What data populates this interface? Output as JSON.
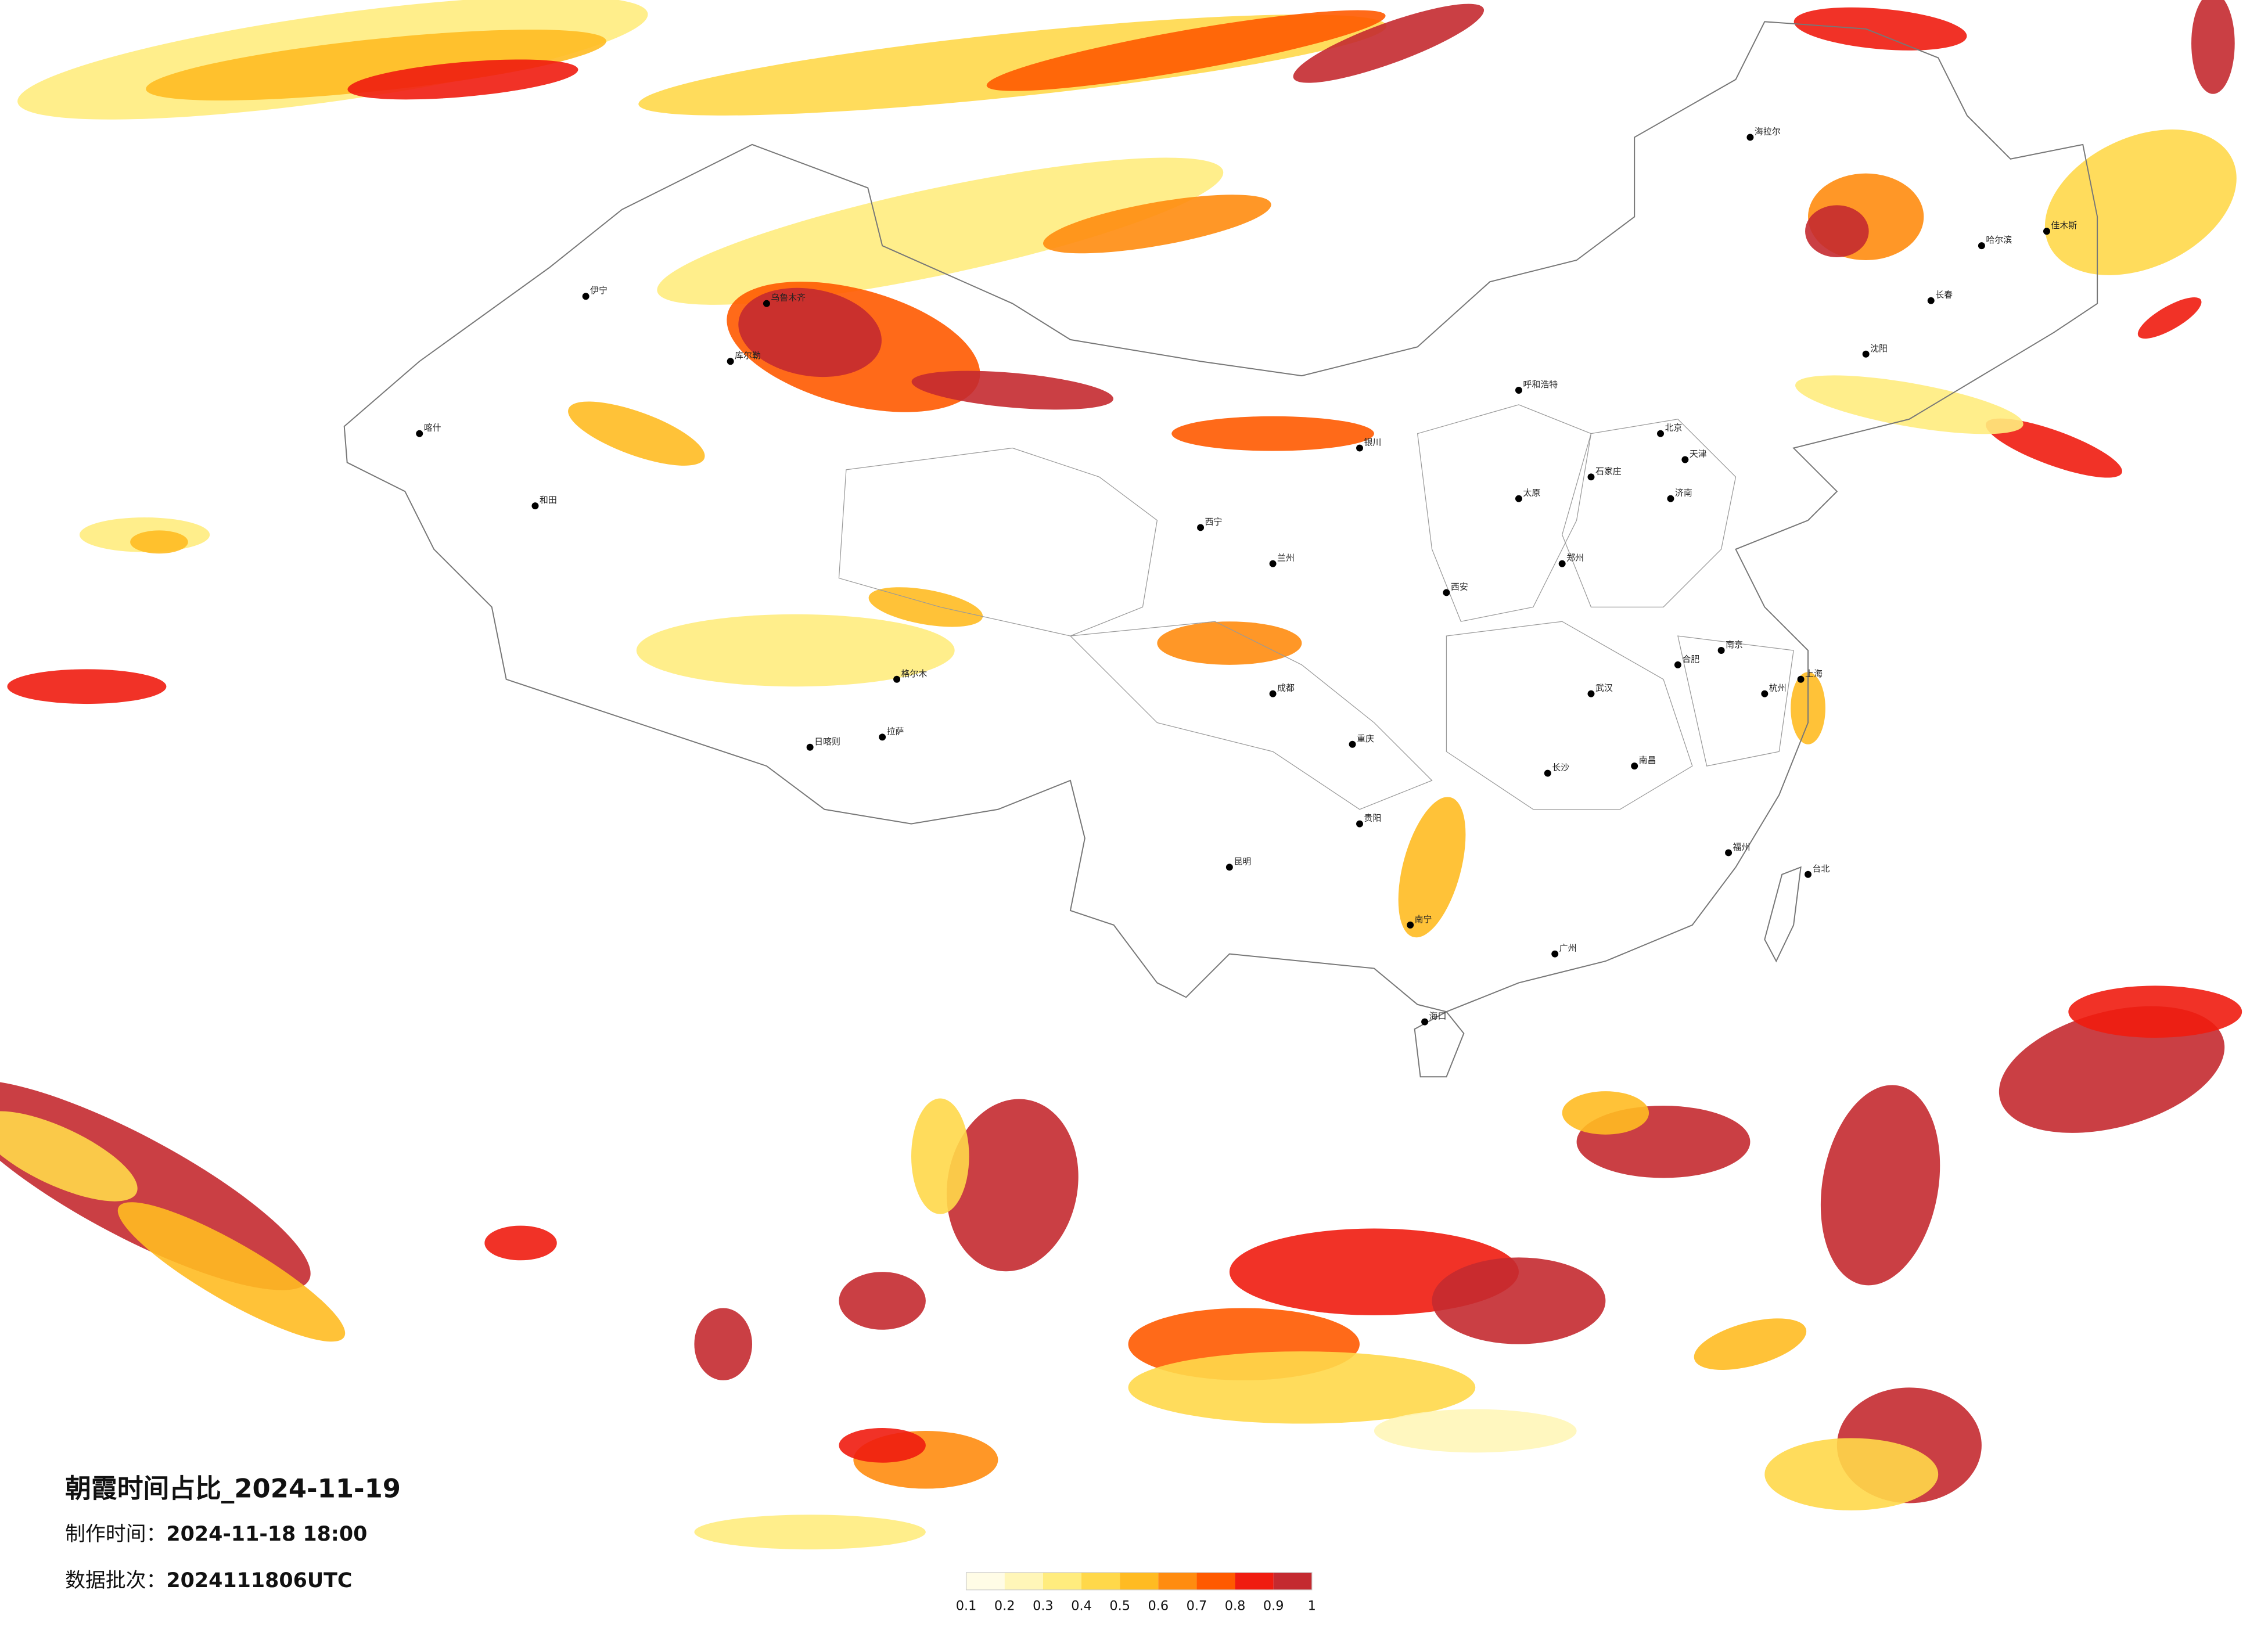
{
  "title": "朝霞时间占比_2024-11-19",
  "info": [
    {
      "label": "制作时间：",
      "value": "2024-11-18 18:00"
    },
    {
      "label": "数据批次：",
      "value": "2024111806UTC"
    }
  ],
  "legend": {
    "ticks": [
      0.1,
      0.2,
      0.3,
      0.4,
      0.5,
      0.6,
      0.7,
      0.8,
      0.9,
      1
    ],
    "colors": [
      "#fffce6",
      "#fff6b8",
      "#ffec7e",
      "#ffd84a",
      "#ffbb22",
      "#ff8c10",
      "#ff5a00",
      "#f01c10",
      "#c42a30"
    ]
  },
  "cities": [
    "北京",
    "天津",
    "上海",
    "重庆",
    "广州",
    "武汉",
    "哈尔滨",
    "长春",
    "沈阳",
    "呼和浩特",
    "乌鲁木齐",
    "拉萨",
    "西宁",
    "兰州",
    "银川",
    "西安",
    "成都",
    "昆明",
    "贵阳",
    "南宁",
    "海口",
    "福州",
    "台北",
    "杭州",
    "南京",
    "合肥",
    "郑州",
    "济南",
    "太原",
    "石家庄",
    "长沙",
    "南昌",
    "喀什",
    "和田",
    "日喀则",
    "伊宁",
    "库尔勒",
    "格尔木",
    "海拉尔",
    "佳木斯"
  ]
}
